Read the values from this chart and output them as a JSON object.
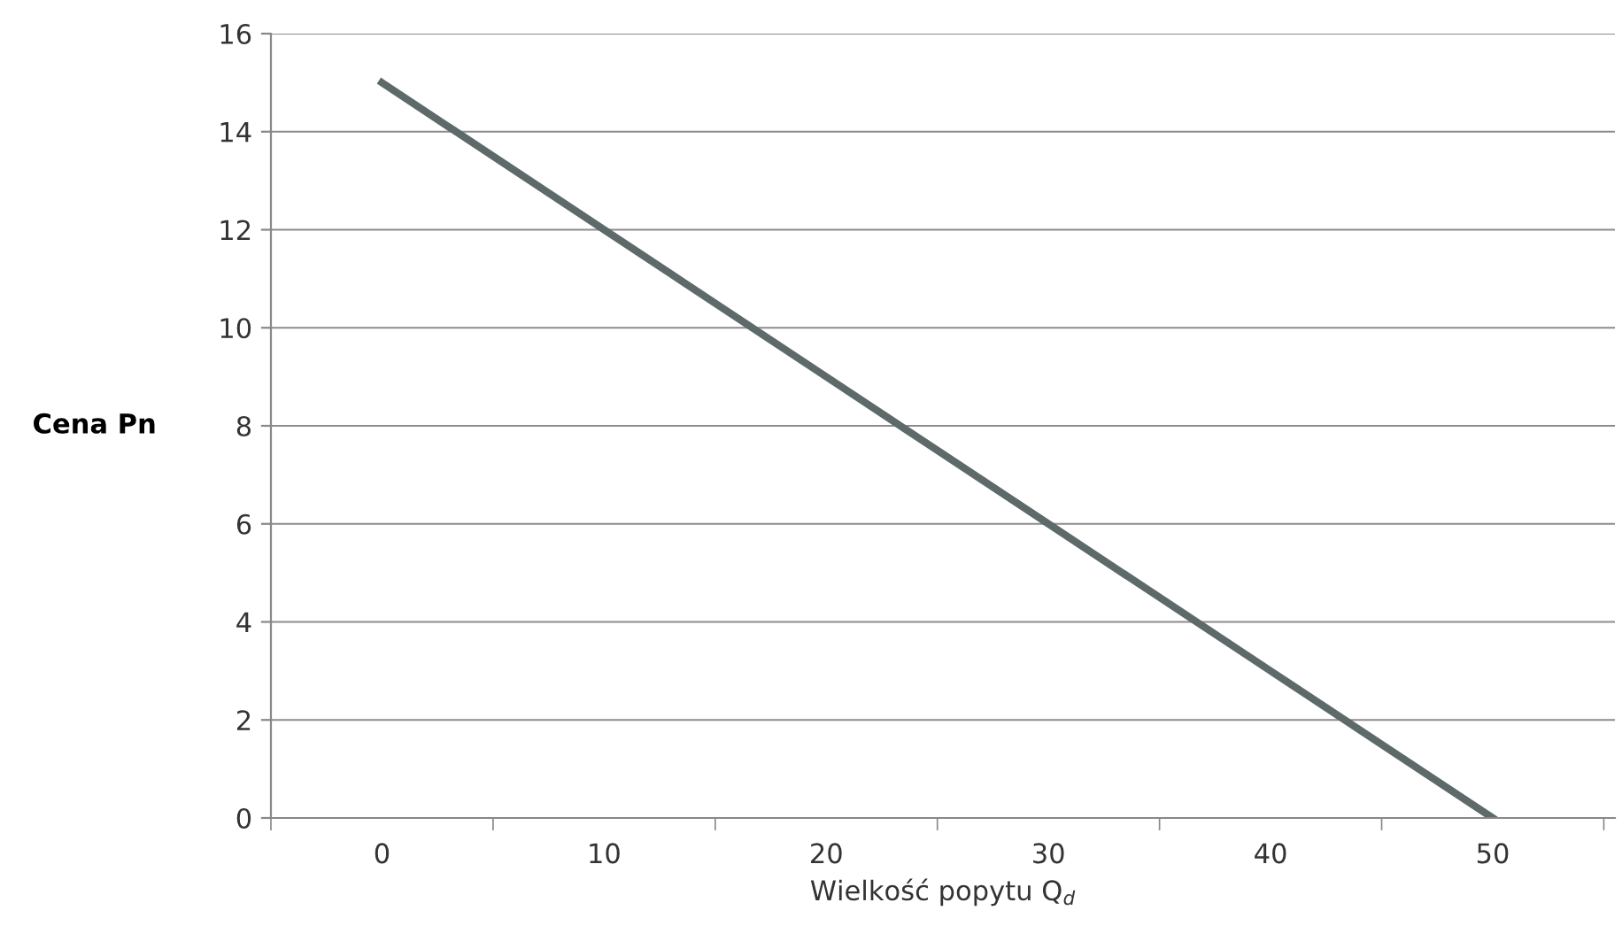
{
  "chart_data": {
    "type": "line",
    "xlabel": "Wielkość popytu Q$_{d}$",
    "ylabel": "Cena Pn",
    "categories": [
      "0",
      "10",
      "20",
      "30",
      "40",
      "50"
    ],
    "series": [
      {
        "color": "#5e6a6a",
        "values": [
          15,
          12,
          9,
          6,
          3,
          0
        ]
      }
    ],
    "ylim": [
      0,
      16
    ],
    "yticks": [
      0,
      2,
      4,
      6,
      8,
      10,
      12,
      14,
      16
    ],
    "grid": "y",
    "marker": "none",
    "line_style": "solid"
  }
}
